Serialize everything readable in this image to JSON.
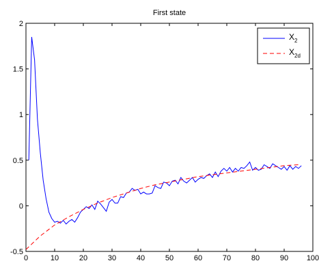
{
  "chart_data": {
    "type": "line",
    "title": "First state",
    "xlabel": "",
    "ylabel": "",
    "xlim": [
      0,
      100
    ],
    "ylim": [
      -0.5,
      2
    ],
    "xticks": [
      0,
      10,
      20,
      30,
      40,
      50,
      60,
      70,
      80,
      90,
      100
    ],
    "yticks": [
      -0.5,
      0,
      0.5,
      1,
      1.5,
      2
    ],
    "xtick_labels": [
      "0",
      "10",
      "20",
      "30",
      "40",
      "50",
      "60",
      "70",
      "80",
      "90",
      "100"
    ],
    "ytick_labels": [
      "-0.5",
      "0",
      "0.5",
      "1",
      "1.5",
      "2"
    ],
    "grid": false,
    "legend_position": "top-right",
    "series": [
      {
        "legend_base": "X",
        "legend_sub": "2",
        "color": "#0000ff",
        "style": "solid",
        "x": [
          1,
          2,
          3,
          4,
          5,
          6,
          7,
          8,
          9,
          10,
          11,
          12,
          13,
          14,
          15,
          16,
          17,
          18,
          19,
          20,
          21,
          22,
          23,
          24,
          25,
          26,
          27,
          28,
          29,
          30,
          31,
          32,
          33,
          34,
          35,
          36,
          37,
          38,
          39,
          40,
          41,
          42,
          43,
          44,
          45,
          46,
          47,
          48,
          49,
          50,
          51,
          52,
          53,
          54,
          55,
          56,
          57,
          58,
          59,
          60,
          61,
          62,
          63,
          64,
          65,
          66,
          67,
          68,
          69,
          70,
          71,
          72,
          73,
          74,
          75,
          76,
          77,
          78,
          79,
          80,
          81,
          82,
          83,
          84,
          85,
          86,
          87,
          88,
          89,
          90,
          91,
          92,
          93,
          94,
          95,
          96
        ],
        "y": [
          0.5,
          1.85,
          1.6,
          0.95,
          0.58,
          0.28,
          0.08,
          -0.07,
          -0.14,
          -0.18,
          -0.17,
          -0.19,
          -0.16,
          -0.2,
          -0.17,
          -0.15,
          -0.18,
          -0.13,
          -0.07,
          -0.04,
          -0.01,
          -0.03,
          0.01,
          -0.04,
          0.05,
          0.02,
          -0.02,
          -0.06,
          0.04,
          0.07,
          0.03,
          0.03,
          0.1,
          0.09,
          0.14,
          0.15,
          0.19,
          0.17,
          0.18,
          0.13,
          0.15,
          0.13,
          0.13,
          0.14,
          0.22,
          0.2,
          0.19,
          0.26,
          0.25,
          0.22,
          0.27,
          0.28,
          0.24,
          0.31,
          0.27,
          0.25,
          0.28,
          0.31,
          0.26,
          0.29,
          0.31,
          0.3,
          0.33,
          0.35,
          0.31,
          0.37,
          0.32,
          0.38,
          0.41,
          0.38,
          0.42,
          0.37,
          0.41,
          0.38,
          0.42,
          0.41,
          0.44,
          0.48,
          0.39,
          0.42,
          0.39,
          0.4,
          0.45,
          0.43,
          0.41,
          0.46,
          0.44,
          0.42,
          0.4,
          0.43,
          0.39,
          0.44,
          0.4,
          0.43,
          0.41,
          0.44
        ]
      },
      {
        "legend_base": "X",
        "legend_sub": "2d",
        "color": "#ff0000",
        "style": "dashed",
        "x": [
          0,
          5,
          10,
          15,
          20,
          25,
          30,
          35,
          40,
          45,
          50,
          55,
          60,
          65,
          70,
          75,
          80,
          85,
          90,
          95
        ],
        "y": [
          -0.48,
          -0.33,
          -0.21,
          -0.12,
          -0.04,
          0.03,
          0.09,
          0.14,
          0.19,
          0.23,
          0.26,
          0.29,
          0.32,
          0.34,
          0.36,
          0.38,
          0.4,
          0.42,
          0.44,
          0.45
        ]
      }
    ]
  }
}
